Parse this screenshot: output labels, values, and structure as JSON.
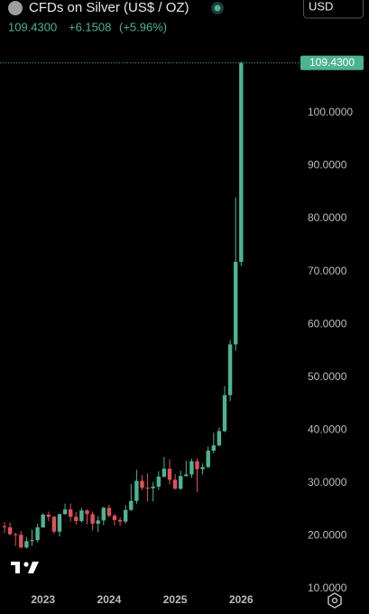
{
  "header": {
    "title": "CFDs on Silver (US$ / OZ)",
    "change": "+6.1508",
    "change_pct": "(+5.96%)",
    "currency": "USD"
  },
  "chart_data": {
    "type": "candlestick",
    "last_price": {
      "value": 109.43,
      "label": "109.4300"
    },
    "categories": [
      null,
      null,
      null,
      null,
      null,
      null,
      null,
      "2023",
      null,
      null,
      null,
      null,
      null,
      null,
      null,
      null,
      null,
      null,
      null,
      "2024",
      null,
      null,
      null,
      null,
      null,
      null,
      null,
      null,
      null,
      null,
      null,
      "2025",
      null,
      null,
      null,
      null,
      null,
      null,
      null,
      null,
      null,
      null,
      null,
      "2026"
    ],
    "open": [
      21.8,
      21.6,
      20.3,
      20.2,
      17.8,
      19.0,
      19.2,
      21.6,
      24.0,
      23.6,
      20.8,
      24.1,
      25.0,
      23.6,
      22.8,
      24.8,
      24.1,
      22.3,
      22.9,
      25.3,
      23.8,
      23.0,
      22.7,
      24.9,
      26.6,
      30.4,
      29.1,
      29.0,
      29.3,
      31.2,
      32.7,
      30.6,
      28.9,
      31.3,
      31.6,
      34.1,
      32.6,
      33.0,
      36.1,
      37.1,
      39.8,
      46.6,
      56.2,
      71.8
    ],
    "high": [
      22.6,
      22.5,
      20.6,
      20.9,
      19.8,
      21.2,
      22.3,
      24.3,
      24.6,
      23.8,
      24.2,
      26.1,
      26.1,
      24.5,
      25.3,
      25.0,
      24.6,
      23.7,
      25.5,
      25.9,
      24.1,
      23.5,
      25.8,
      29.8,
      32.5,
      31.5,
      31.8,
      30.2,
      32.2,
      34.9,
      34.5,
      31.7,
      32.3,
      34.2,
      34.6,
      34.6,
      33.7,
      36.9,
      39.5,
      40.5,
      48.3,
      57.0,
      84.0,
      109.7
    ],
    "low": [
      20.5,
      20.1,
      18.1,
      17.6,
      17.6,
      18.1,
      18.8,
      21.5,
      22.8,
      20.4,
      19.9,
      24.0,
      22.7,
      22.1,
      22.5,
      22.2,
      21.0,
      20.7,
      22.0,
      23.5,
      22.0,
      21.9,
      22.3,
      24.7,
      26.0,
      28.6,
      26.5,
      26.5,
      28.7,
      31.0,
      29.7,
      28.8,
      28.7,
      31.2,
      31.0,
      28.3,
      31.6,
      32.8,
      35.6,
      36.9,
      39.6,
      45.5,
      55.0,
      71.0
    ],
    "close": [
      21.6,
      20.3,
      20.2,
      17.8,
      19.0,
      19.2,
      21.6,
      24.0,
      23.6,
      20.8,
      24.1,
      25.0,
      23.6,
      22.8,
      24.8,
      24.1,
      22.3,
      22.9,
      25.3,
      23.8,
      23.0,
      22.7,
      24.9,
      26.6,
      30.4,
      29.1,
      29.0,
      29.3,
      31.2,
      32.7,
      30.6,
      28.9,
      31.3,
      31.6,
      34.1,
      32.6,
      33.0,
      36.1,
      37.1,
      39.8,
      46.6,
      56.2,
      71.8,
      109.43
    ],
    "up_color": "#4db393",
    "down_color": "#e0505a",
    "ylim": [
      5.9,
      116.2
    ],
    "yticks": [
      {
        "value": 10,
        "label": "10.0000"
      },
      {
        "value": 20,
        "label": "20.0000"
      },
      {
        "value": 30,
        "label": "30.0000"
      },
      {
        "value": 40,
        "label": "40.0000"
      },
      {
        "value": 50,
        "label": "50.0000"
      },
      {
        "value": 60,
        "label": "60.0000"
      },
      {
        "value": 70,
        "label": "70.0000"
      },
      {
        "value": 80,
        "label": "80.0000"
      },
      {
        "value": 90,
        "label": "90.0000"
      },
      {
        "value": 100,
        "label": "100.0000"
      }
    ]
  }
}
